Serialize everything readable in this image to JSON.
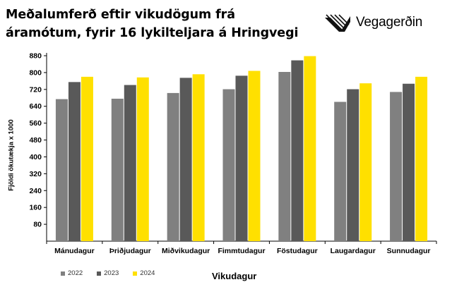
{
  "header": {
    "title_line1": "Meðalumferð eftir vikudögum frá",
    "title_line2": "áramótum, fyrir 16 lykilteljara á Hringvegi",
    "logo_text": "Vegagerðin",
    "logo_icon": "vegagerdin-logo-icon"
  },
  "chart_data": {
    "type": "bar",
    "xlabel": "Vikudagur",
    "ylabel": "Fjöldi ökutækja x 1000",
    "ylim": [
      0,
      880
    ],
    "yticks": [
      80,
      160,
      240,
      320,
      400,
      480,
      560,
      640,
      720,
      800,
      880
    ],
    "categories": [
      "Mánudagur",
      "Þriðjudagur",
      "Miðvikudagur",
      "Fimmtudagur",
      "Föstudagur",
      "Laugardagur",
      "Sunnudagur"
    ],
    "series": [
      {
        "name": "2022",
        "color": "#808080",
        "values": [
          674,
          676,
          703,
          721,
          803,
          661,
          708
        ]
      },
      {
        "name": "2023",
        "color": "#595959",
        "values": [
          755,
          741,
          775,
          785,
          858,
          721,
          747
        ]
      },
      {
        "name": "2024",
        "color": "#FFE000",
        "values": [
          780,
          777,
          792,
          808,
          878,
          749,
          780
        ]
      }
    ],
    "grid": false,
    "legend_position": "bottom-left"
  }
}
